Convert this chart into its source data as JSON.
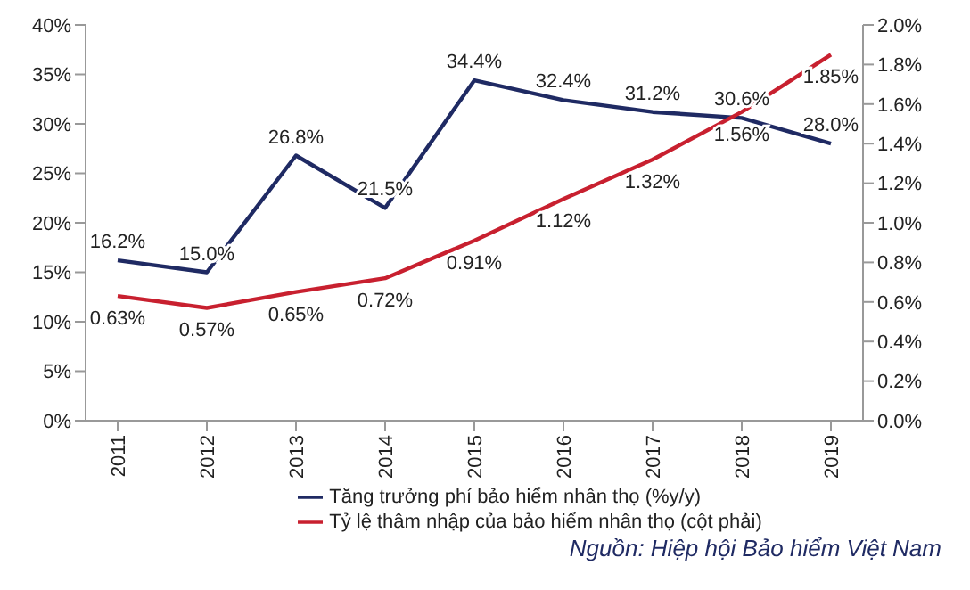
{
  "chart_data": {
    "type": "line",
    "categories": [
      "2011",
      "2012",
      "2013",
      "2014",
      "2015",
      "2016",
      "2017",
      "2018",
      "2019"
    ],
    "series": [
      {
        "name": "Tăng trưởng phí bảo hiểm nhân thọ (%y/y)",
        "color": "#1f2a63",
        "values": [
          16.2,
          15.0,
          26.8,
          21.5,
          34.4,
          32.4,
          31.2,
          30.6,
          28.0
        ],
        "value_labels": [
          "16.2%",
          "15.0%",
          "26.8%",
          "21.5%",
          "34.4%",
          "32.4%",
          "31.2%",
          "30.6%",
          "28.0%"
        ]
      },
      {
        "name": "Tỷ lệ thâm nhập của bảo hiểm nhân thọ (cột phải)",
        "color": "#c8202f",
        "axis": "y2",
        "values": [
          0.63,
          0.57,
          0.65,
          0.72,
          0.91,
          1.12,
          1.32,
          1.56,
          1.85
        ],
        "value_labels": [
          "0.63%",
          "0.57%",
          "0.65%",
          "0.72%",
          "0.91%",
          "1.12%",
          "1.32%",
          "1.56%",
          "1.85%"
        ]
      }
    ],
    "ylim": [
      0,
      40
    ],
    "yticks": [
      {
        "value": 0,
        "label": "0%"
      },
      {
        "value": 5,
        "label": "5%"
      },
      {
        "value": 10,
        "label": "10%"
      },
      {
        "value": 15,
        "label": "15%"
      },
      {
        "value": 20,
        "label": "20%"
      },
      {
        "value": 25,
        "label": "25%"
      },
      {
        "value": 30,
        "label": "30%"
      },
      {
        "value": 35,
        "label": "35%"
      },
      {
        "value": 40,
        "label": "40%"
      }
    ],
    "y2lim": [
      0,
      2.0
    ],
    "y2ticks": [
      {
        "value": 0,
        "label": "0.0%"
      },
      {
        "value": 0.2,
        "label": "0.2%"
      },
      {
        "value": 0.4,
        "label": "0.4%"
      },
      {
        "value": 0.6,
        "label": "0.6%"
      },
      {
        "value": 0.8,
        "label": "0.8%"
      },
      {
        "value": 1.0,
        "label": "1.0%"
      },
      {
        "value": 1.2,
        "label": "1.2%"
      },
      {
        "value": 1.4,
        "label": "1.4%"
      },
      {
        "value": 1.6,
        "label": "1.6%"
      },
      {
        "value": 1.8,
        "label": "1.8%"
      },
      {
        "value": 2.0,
        "label": "2.0%"
      }
    ],
    "legend": "bottom",
    "grid": false,
    "marker": "none",
    "line_style": "solid",
    "annotations": [
      "Nguồn: Hiệp hội Bảo hiểm Việt Nam"
    ]
  }
}
